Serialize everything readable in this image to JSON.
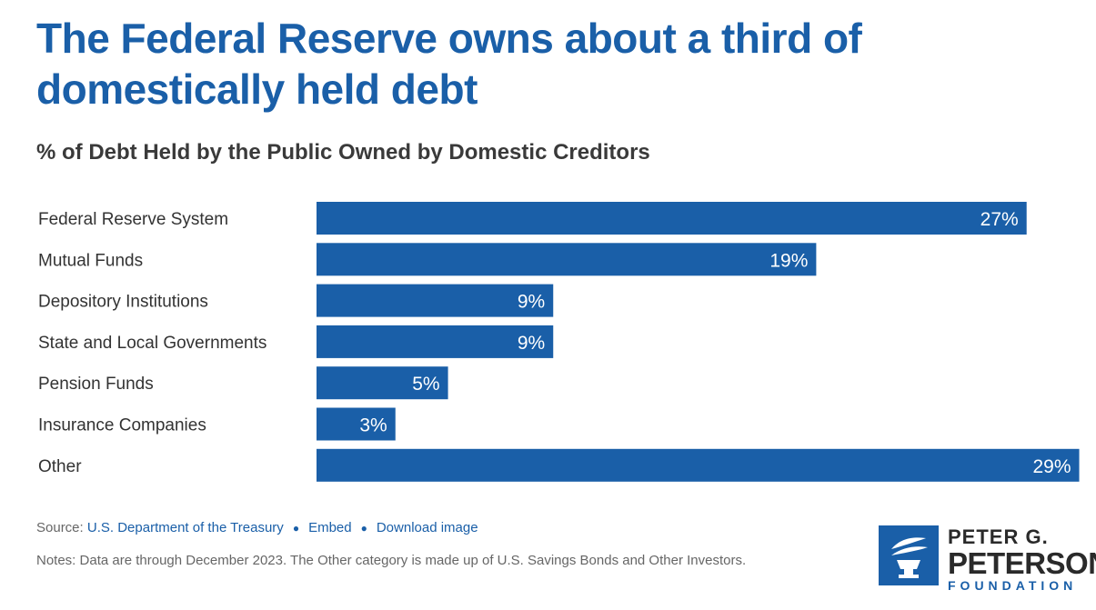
{
  "title": "The Federal Reserve owns about a third of domestically held debt",
  "subtitle": "% of Debt Held by the Public Owned by Domestic Creditors",
  "footer": {
    "source_prefix": "Source:",
    "source_link": "U.S. Department of the Treasury",
    "embed": "Embed",
    "download": "Download image",
    "notes": "Notes: Data are through December 2023. The Other category is made up of U.S. Savings Bonds and Other Investors."
  },
  "logo": {
    "line1": "PETER G.",
    "line2": "PETERSON",
    "line3": "FOUNDATION"
  },
  "colors": {
    "bar": "#1a5fa8",
    "title": "#1a5fa8",
    "label": "#333333"
  },
  "chart_data": {
    "type": "bar",
    "orientation": "horizontal",
    "categories": [
      "Federal Reserve System",
      "Mutual Funds",
      "Depository Institutions",
      "State and Local Governments",
      "Pension Funds",
      "Insurance Companies",
      "Other"
    ],
    "values": [
      27,
      19,
      9,
      9,
      5,
      3,
      29
    ],
    "value_labels": [
      "27%",
      "19%",
      "9%",
      "9%",
      "5%",
      "3%",
      "29%"
    ],
    "xlim": [
      0,
      29.5
    ],
    "grid": false,
    "legend": "none"
  }
}
